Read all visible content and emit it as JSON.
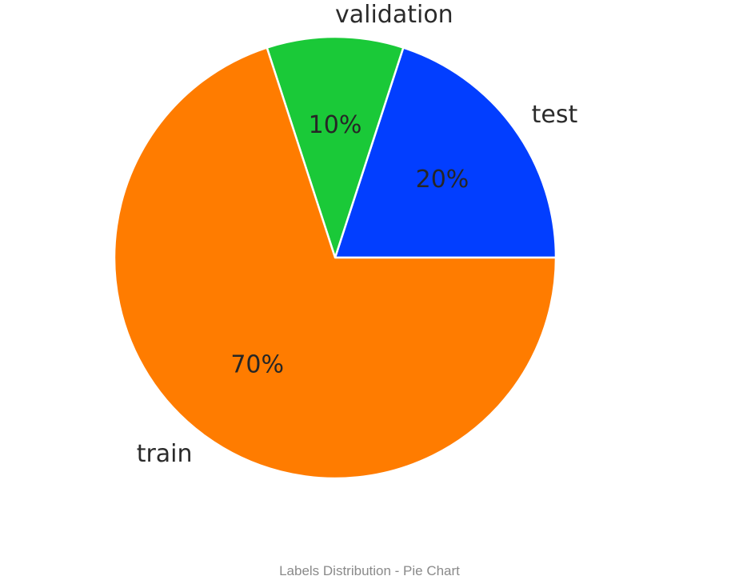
{
  "chart_data": {
    "type": "pie",
    "categories": [
      "test",
      "validation",
      "train"
    ],
    "values": [
      20,
      10,
      70
    ],
    "percent_labels": [
      "20%",
      "10%",
      "70%"
    ],
    "colors": [
      "#023eff",
      "#1ac938",
      "#ff7c00"
    ],
    "start_angle_deg": 0,
    "direction": "counterclockwise",
    "legend": "none"
  },
  "caption": "Labels Distribution - Pie Chart"
}
